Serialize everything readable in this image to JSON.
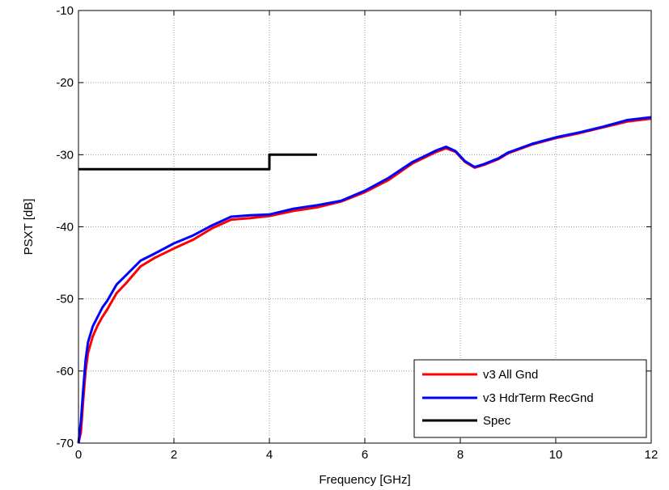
{
  "chart_data": {
    "type": "line",
    "title": "",
    "xlabel": "Frequency [GHz]",
    "ylabel": "PSXT [dB]",
    "xlim": [
      0,
      12
    ],
    "ylim": [
      -70,
      -10
    ],
    "xticks": [
      0,
      2,
      4,
      6,
      8,
      10,
      12
    ],
    "yticks": [
      -10,
      -20,
      -30,
      -40,
      -50,
      -60,
      -70
    ],
    "grid": true,
    "legend_position": "bottom-right",
    "series": [
      {
        "name": "v3 All Gnd",
        "color": "#ff0000",
        "x": [
          0.0,
          0.05,
          0.1,
          0.15,
          0.2,
          0.3,
          0.4,
          0.5,
          0.6,
          0.8,
          1.0,
          1.3,
          1.6,
          2.0,
          2.4,
          2.8,
          3.2,
          3.6,
          4.0,
          4.5,
          5.0,
          5.5,
          6.0,
          6.5,
          7.0,
          7.5,
          7.7,
          7.9,
          8.1,
          8.3,
          8.5,
          8.8,
          9.0,
          9.5,
          10.0,
          10.5,
          11.0,
          11.5,
          12.0
        ],
        "y": [
          -70.0,
          -68.5,
          -64.0,
          -60.0,
          -57.5,
          -55.2,
          -53.7,
          -52.5,
          -51.5,
          -49.2,
          -47.8,
          -45.5,
          -44.3,
          -43.0,
          -41.8,
          -40.2,
          -39.0,
          -38.8,
          -38.5,
          -37.8,
          -37.3,
          -36.5,
          -35.2,
          -33.5,
          -31.2,
          -29.6,
          -29.1,
          -29.6,
          -31.0,
          -31.8,
          -31.4,
          -30.6,
          -29.8,
          -28.6,
          -27.7,
          -27.0,
          -26.2,
          -25.4,
          -25.0
        ]
      },
      {
        "name": "v3 HdrTerm RecGnd",
        "color": "#0000ff",
        "x": [
          0.0,
          0.05,
          0.1,
          0.15,
          0.2,
          0.3,
          0.4,
          0.5,
          0.6,
          0.8,
          1.0,
          1.3,
          1.6,
          2.0,
          2.4,
          2.8,
          3.2,
          3.6,
          4.0,
          4.5,
          5.0,
          5.5,
          6.0,
          6.5,
          7.0,
          7.5,
          7.7,
          7.9,
          8.1,
          8.3,
          8.5,
          8.8,
          9.0,
          9.5,
          10.0,
          10.5,
          11.0,
          11.5,
          12.0
        ],
        "y": [
          -70.0,
          -67.0,
          -62.5,
          -58.5,
          -56.0,
          -53.8,
          -52.5,
          -51.2,
          -50.3,
          -48.0,
          -46.7,
          -44.7,
          -43.7,
          -42.3,
          -41.2,
          -39.8,
          -38.6,
          -38.4,
          -38.3,
          -37.5,
          -37.0,
          -36.4,
          -35.0,
          -33.2,
          -31.0,
          -29.4,
          -28.9,
          -29.5,
          -30.9,
          -31.7,
          -31.3,
          -30.5,
          -29.7,
          -28.5,
          -27.6,
          -26.9,
          -26.1,
          -25.2,
          -24.8
        ]
      },
      {
        "name": "Spec",
        "color": "#000000",
        "x": [
          0,
          4,
          4,
          5
        ],
        "y": [
          -32,
          -32,
          -30,
          -30
        ]
      }
    ]
  }
}
